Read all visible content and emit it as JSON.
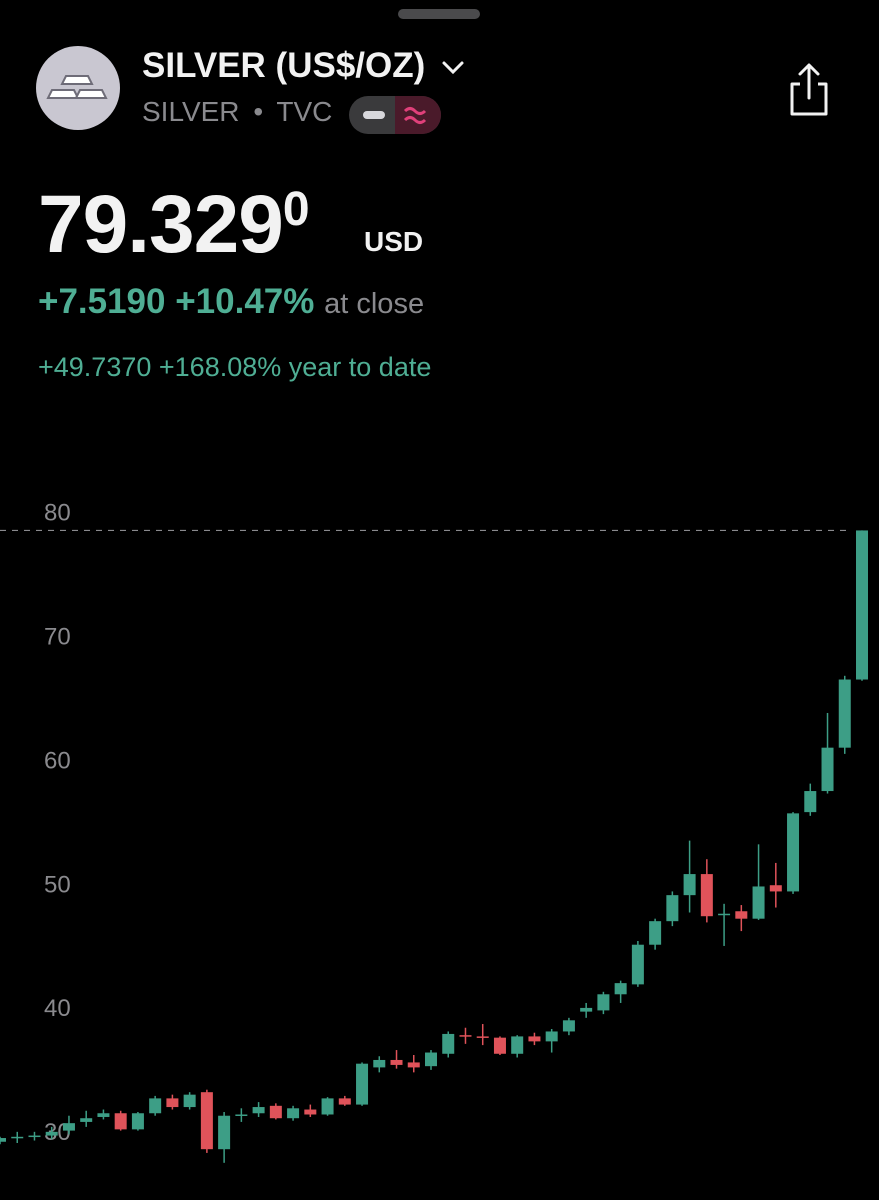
{
  "header": {
    "title": "SILVER (US$/OZ)",
    "symbol": "SILVER",
    "separator": "•",
    "exchange": "TVC"
  },
  "quote": {
    "price": "79.329",
    "price_superscript": "0",
    "currency": "USD",
    "change": "+7.5190",
    "change_percent": "+10.47%",
    "change_note": "at close",
    "ytd_change": "+49.7370",
    "ytd_percent": "+168.08%",
    "ytd_note": "year to date"
  },
  "chart_data": {
    "type": "candlestick",
    "up_color": "#3d9e86",
    "down_color": "#e0535a",
    "ylim": [
      25.3,
      83.4
    ],
    "yticks": [
      30,
      40,
      50,
      60,
      70,
      80
    ],
    "open": [
      30.0,
      30.3,
      30.4,
      30.5,
      30.9,
      31.6,
      32.0,
      32.3,
      31.0,
      32.3,
      33.5,
      32.8,
      34.0,
      29.4,
      32.1,
      32.3,
      32.9,
      31.9,
      32.6,
      32.2,
      33.5,
      33.0,
      36.0,
      36.6,
      36.4,
      36.1,
      37.1,
      38.6,
      38.5,
      38.4,
      37.1,
      38.5,
      38.1,
      38.9,
      40.5,
      40.6,
      41.9,
      42.7,
      45.9,
      47.8,
      49.9,
      51.6,
      48.3,
      48.6,
      48.0,
      50.7,
      50.2,
      56.6,
      58.3,
      61.8,
      67.3
    ],
    "high": [
      30.4,
      30.8,
      30.8,
      31.2,
      32.1,
      32.5,
      32.6,
      32.5,
      32.4,
      33.7,
      33.8,
      34.0,
      34.2,
      32.4,
      32.7,
      33.2,
      33.1,
      32.9,
      33.0,
      33.6,
      33.7,
      36.4,
      36.9,
      37.4,
      37.0,
      37.4,
      38.9,
      39.2,
      39.5,
      38.5,
      38.6,
      38.8,
      39.1,
      40.0,
      41.2,
      42.1,
      43.0,
      46.2,
      48.0,
      50.2,
      54.3,
      52.8,
      49.2,
      49.1,
      54.0,
      52.5,
      56.6,
      58.9,
      64.6,
      67.6,
      79.33
    ],
    "low": [
      29.8,
      29.9,
      30.1,
      30.2,
      30.6,
      31.2,
      31.8,
      30.9,
      30.9,
      32.1,
      32.6,
      32.6,
      29.1,
      28.3,
      31.6,
      32.0,
      31.8,
      31.7,
      32.0,
      32.1,
      32.9,
      32.9,
      35.6,
      35.9,
      35.6,
      35.8,
      36.8,
      37.9,
      37.8,
      37.0,
      36.8,
      37.8,
      37.2,
      38.6,
      40.0,
      40.3,
      41.2,
      42.5,
      45.5,
      47.4,
      48.5,
      47.7,
      45.8,
      47.0,
      47.9,
      48.9,
      50.0,
      56.3,
      58.1,
      61.3,
      67.2
    ],
    "close": [
      30.3,
      30.4,
      30.5,
      30.8,
      31.5,
      31.9,
      32.3,
      31.0,
      32.3,
      33.5,
      32.8,
      33.8,
      29.4,
      32.1,
      32.2,
      32.8,
      31.9,
      32.7,
      32.2,
      33.5,
      33.0,
      36.3,
      36.6,
      36.2,
      36.0,
      37.2,
      38.7,
      38.5,
      38.4,
      37.1,
      38.5,
      38.1,
      38.9,
      39.8,
      40.8,
      41.9,
      42.8,
      45.9,
      47.8,
      49.9,
      51.6,
      48.2,
      48.4,
      48.0,
      50.6,
      50.2,
      56.5,
      58.3,
      61.8,
      67.3,
      79.33
    ]
  }
}
